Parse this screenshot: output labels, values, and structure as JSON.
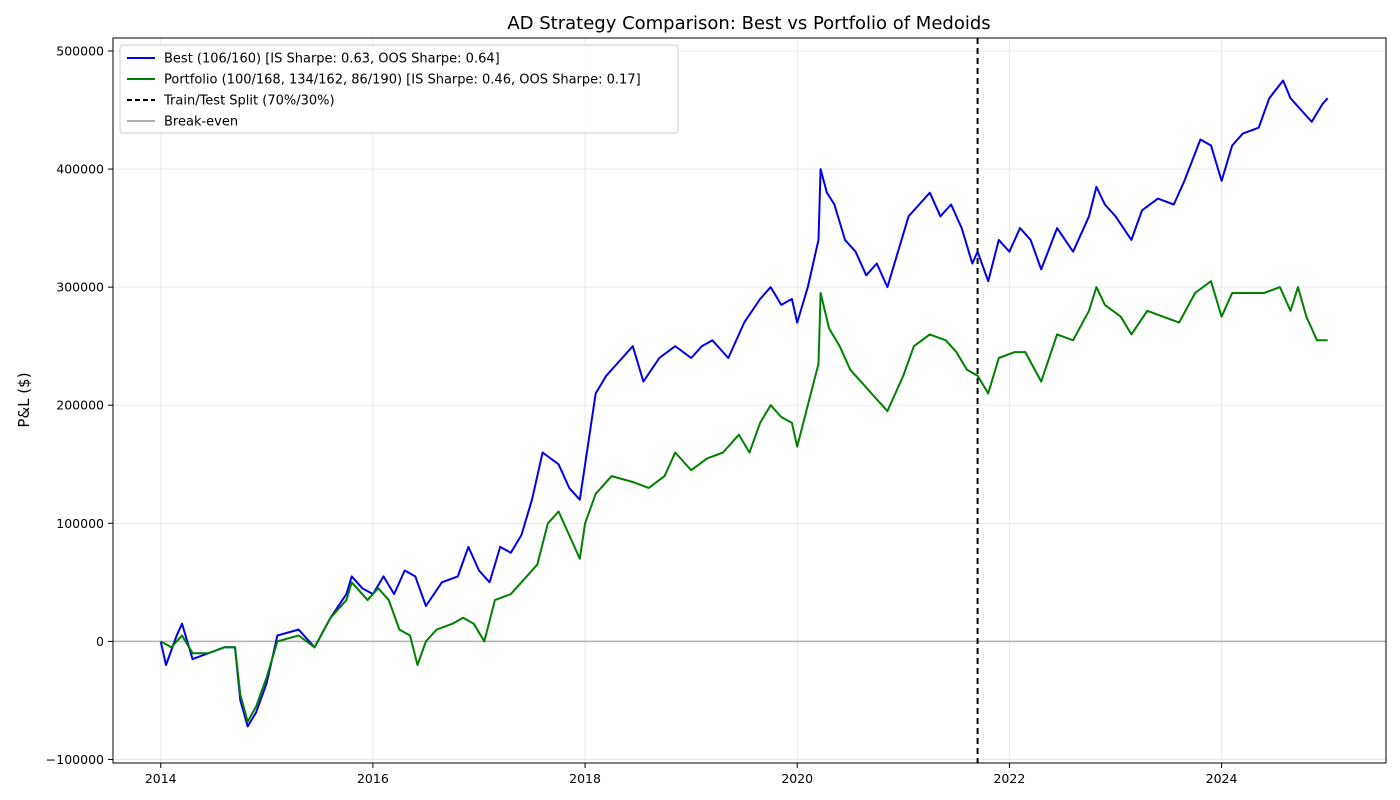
{
  "chart_data": {
    "type": "line",
    "title": "AD Strategy Comparison: Best vs Portfolio of Medoids",
    "xlabel": "",
    "ylabel": "P&L ($)",
    "xlim": [
      2013.55,
      2025.55
    ],
    "ylim": [
      -103000,
      511000
    ],
    "x_ticks": [
      2014,
      2016,
      2018,
      2020,
      2022,
      2024
    ],
    "x_tick_labels": [
      "2014",
      "2016",
      "2018",
      "2020",
      "2022",
      "2024"
    ],
    "y_ticks": [
      -100000,
      0,
      100000,
      200000,
      300000,
      400000,
      500000
    ],
    "y_tick_labels": [
      "−100000",
      "0",
      "100000",
      "200000",
      "300000",
      "400000",
      "500000"
    ],
    "grid": true,
    "legend_position": "top-left",
    "split_line": {
      "label": "Train/Test Split (70%/30%)",
      "x": 2021.7,
      "color": "#000000"
    },
    "break_even": {
      "label": "Break-even",
      "y": 0,
      "color": "#b0b0b0"
    },
    "series": [
      {
        "name": "Best (106/160) [IS Sharpe: 0.63, OOS Sharpe: 0.64]",
        "color": "#0000ee",
        "points": [
          [
            2014.0,
            0
          ],
          [
            2014.05,
            -20000
          ],
          [
            2014.15,
            5000
          ],
          [
            2014.2,
            15000
          ],
          [
            2014.3,
            -15000
          ],
          [
            2014.45,
            -10000
          ],
          [
            2014.6,
            -5000
          ],
          [
            2014.7,
            -5000
          ],
          [
            2014.75,
            -50000
          ],
          [
            2014.82,
            -72000
          ],
          [
            2014.9,
            -60000
          ],
          [
            2015.0,
            -35000
          ],
          [
            2015.1,
            5000
          ],
          [
            2015.3,
            10000
          ],
          [
            2015.45,
            -5000
          ],
          [
            2015.6,
            20000
          ],
          [
            2015.75,
            40000
          ],
          [
            2015.8,
            55000
          ],
          [
            2015.9,
            45000
          ],
          [
            2016.0,
            40000
          ],
          [
            2016.1,
            55000
          ],
          [
            2016.2,
            40000
          ],
          [
            2016.3,
            60000
          ],
          [
            2016.4,
            55000
          ],
          [
            2016.5,
            30000
          ],
          [
            2016.65,
            50000
          ],
          [
            2016.8,
            55000
          ],
          [
            2016.9,
            80000
          ],
          [
            2017.0,
            60000
          ],
          [
            2017.1,
            50000
          ],
          [
            2017.2,
            80000
          ],
          [
            2017.3,
            75000
          ],
          [
            2017.4,
            90000
          ],
          [
            2017.5,
            120000
          ],
          [
            2017.6,
            160000
          ],
          [
            2017.75,
            150000
          ],
          [
            2017.85,
            130000
          ],
          [
            2017.95,
            120000
          ],
          [
            2018.0,
            150000
          ],
          [
            2018.1,
            210000
          ],
          [
            2018.2,
            225000
          ],
          [
            2018.35,
            240000
          ],
          [
            2018.45,
            250000
          ],
          [
            2018.55,
            220000
          ],
          [
            2018.7,
            240000
          ],
          [
            2018.85,
            250000
          ],
          [
            2019.0,
            240000
          ],
          [
            2019.1,
            250000
          ],
          [
            2019.2,
            255000
          ],
          [
            2019.35,
            240000
          ],
          [
            2019.5,
            270000
          ],
          [
            2019.65,
            290000
          ],
          [
            2019.75,
            300000
          ],
          [
            2019.85,
            285000
          ],
          [
            2019.95,
            290000
          ],
          [
            2020.0,
            270000
          ],
          [
            2020.1,
            300000
          ],
          [
            2020.2,
            340000
          ],
          [
            2020.22,
            400000
          ],
          [
            2020.28,
            380000
          ],
          [
            2020.35,
            370000
          ],
          [
            2020.45,
            340000
          ],
          [
            2020.55,
            330000
          ],
          [
            2020.65,
            310000
          ],
          [
            2020.75,
            320000
          ],
          [
            2020.85,
            300000
          ],
          [
            2020.95,
            330000
          ],
          [
            2021.05,
            360000
          ],
          [
            2021.15,
            370000
          ],
          [
            2021.25,
            380000
          ],
          [
            2021.35,
            360000
          ],
          [
            2021.45,
            370000
          ],
          [
            2021.55,
            350000
          ],
          [
            2021.65,
            320000
          ],
          [
            2021.7,
            330000
          ],
          [
            2021.8,
            305000
          ],
          [
            2021.9,
            340000
          ],
          [
            2022.0,
            330000
          ],
          [
            2022.1,
            350000
          ],
          [
            2022.2,
            340000
          ],
          [
            2022.3,
            315000
          ],
          [
            2022.45,
            350000
          ],
          [
            2022.6,
            330000
          ],
          [
            2022.75,
            360000
          ],
          [
            2022.82,
            385000
          ],
          [
            2022.9,
            370000
          ],
          [
            2023.0,
            360000
          ],
          [
            2023.15,
            340000
          ],
          [
            2023.25,
            365000
          ],
          [
            2023.4,
            375000
          ],
          [
            2023.55,
            370000
          ],
          [
            2023.65,
            390000
          ],
          [
            2023.8,
            425000
          ],
          [
            2023.9,
            420000
          ],
          [
            2024.0,
            390000
          ],
          [
            2024.1,
            420000
          ],
          [
            2024.2,
            430000
          ],
          [
            2024.35,
            435000
          ],
          [
            2024.45,
            460000
          ],
          [
            2024.58,
            475000
          ],
          [
            2024.65,
            460000
          ],
          [
            2024.75,
            450000
          ],
          [
            2024.85,
            440000
          ],
          [
            2024.95,
            455000
          ],
          [
            2025.0,
            460000
          ]
        ]
      },
      {
        "name": "Portfolio (100/168, 134/162, 86/190) [IS Sharpe: 0.46, OOS Sharpe: 0.17]",
        "color": "#008000",
        "points": [
          [
            2014.0,
            0
          ],
          [
            2014.1,
            -5000
          ],
          [
            2014.2,
            5000
          ],
          [
            2014.3,
            -10000
          ],
          [
            2014.45,
            -10000
          ],
          [
            2014.6,
            -5000
          ],
          [
            2014.7,
            -5000
          ],
          [
            2014.75,
            -45000
          ],
          [
            2014.82,
            -68000
          ],
          [
            2014.9,
            -55000
          ],
          [
            2015.0,
            -30000
          ],
          [
            2015.1,
            0
          ],
          [
            2015.3,
            5000
          ],
          [
            2015.45,
            -5000
          ],
          [
            2015.6,
            20000
          ],
          [
            2015.75,
            35000
          ],
          [
            2015.8,
            50000
          ],
          [
            2015.95,
            35000
          ],
          [
            2016.05,
            45000
          ],
          [
            2016.15,
            35000
          ],
          [
            2016.25,
            10000
          ],
          [
            2016.35,
            5000
          ],
          [
            2016.42,
            -20000
          ],
          [
            2016.5,
            0
          ],
          [
            2016.6,
            10000
          ],
          [
            2016.75,
            15000
          ],
          [
            2016.85,
            20000
          ],
          [
            2016.95,
            15000
          ],
          [
            2017.05,
            0
          ],
          [
            2017.15,
            35000
          ],
          [
            2017.3,
            40000
          ],
          [
            2017.45,
            55000
          ],
          [
            2017.55,
            65000
          ],
          [
            2017.65,
            100000
          ],
          [
            2017.75,
            110000
          ],
          [
            2017.85,
            90000
          ],
          [
            2017.95,
            70000
          ],
          [
            2018.0,
            100000
          ],
          [
            2018.1,
            125000
          ],
          [
            2018.25,
            140000
          ],
          [
            2018.45,
            135000
          ],
          [
            2018.6,
            130000
          ],
          [
            2018.75,
            140000
          ],
          [
            2018.85,
            160000
          ],
          [
            2019.0,
            145000
          ],
          [
            2019.15,
            155000
          ],
          [
            2019.3,
            160000
          ],
          [
            2019.45,
            175000
          ],
          [
            2019.55,
            160000
          ],
          [
            2019.65,
            185000
          ],
          [
            2019.75,
            200000
          ],
          [
            2019.85,
            190000
          ],
          [
            2019.95,
            185000
          ],
          [
            2020.0,
            165000
          ],
          [
            2020.1,
            200000
          ],
          [
            2020.2,
            235000
          ],
          [
            2020.22,
            295000
          ],
          [
            2020.3,
            265000
          ],
          [
            2020.4,
            250000
          ],
          [
            2020.5,
            230000
          ],
          [
            2020.6,
            220000
          ],
          [
            2020.75,
            205000
          ],
          [
            2020.85,
            195000
          ],
          [
            2021.0,
            225000
          ],
          [
            2021.1,
            250000
          ],
          [
            2021.25,
            260000
          ],
          [
            2021.4,
            255000
          ],
          [
            2021.5,
            245000
          ],
          [
            2021.6,
            230000
          ],
          [
            2021.7,
            225000
          ],
          [
            2021.8,
            210000
          ],
          [
            2021.9,
            240000
          ],
          [
            2022.05,
            245000
          ],
          [
            2022.15,
            245000
          ],
          [
            2022.3,
            220000
          ],
          [
            2022.45,
            260000
          ],
          [
            2022.6,
            255000
          ],
          [
            2022.75,
            280000
          ],
          [
            2022.82,
            300000
          ],
          [
            2022.9,
            285000
          ],
          [
            2023.05,
            275000
          ],
          [
            2023.15,
            260000
          ],
          [
            2023.3,
            280000
          ],
          [
            2023.45,
            275000
          ],
          [
            2023.6,
            270000
          ],
          [
            2023.75,
            295000
          ],
          [
            2023.9,
            305000
          ],
          [
            2024.0,
            275000
          ],
          [
            2024.1,
            295000
          ],
          [
            2024.25,
            295000
          ],
          [
            2024.4,
            295000
          ],
          [
            2024.55,
            300000
          ],
          [
            2024.65,
            280000
          ],
          [
            2024.72,
            300000
          ],
          [
            2024.8,
            275000
          ],
          [
            2024.9,
            255000
          ],
          [
            2025.0,
            255000
          ]
        ]
      }
    ]
  }
}
